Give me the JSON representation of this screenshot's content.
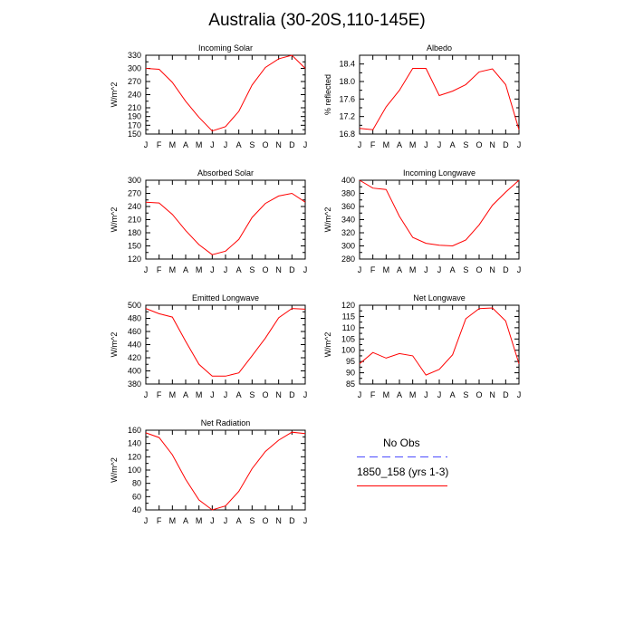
{
  "title": "Australia (30-20S,110-145E)",
  "months": [
    "J",
    "F",
    "M",
    "A",
    "M",
    "J",
    "J",
    "A",
    "S",
    "O",
    "N",
    "D",
    "J"
  ],
  "colors": {
    "model": "#ff0000",
    "obs": "#4a4aff",
    "axis": "#000000"
  },
  "legend": {
    "obs_label": "No Obs",
    "model_label": "1850_158 (yrs 1-3)"
  },
  "chart_data": [
    {
      "type": "line",
      "title": "Incoming Solar",
      "ylabel": "W/m^2",
      "ylim": [
        150,
        330
      ],
      "yticks": [
        150,
        170,
        190,
        210,
        240,
        270,
        300,
        330
      ],
      "series": [
        {
          "name": "1850_158 (yrs 1-3)",
          "values": [
            300,
            298,
            268,
            225,
            188,
            157,
            167,
            202,
            262,
            302,
            322,
            330,
            300
          ]
        }
      ]
    },
    {
      "type": "line",
      "title": "Albedo",
      "ylabel": "% reflected",
      "ylim": [
        16.8,
        18.6
      ],
      "yticks": [
        16.8,
        17.2,
        17.6,
        18.0,
        18.4
      ],
      "series": [
        {
          "name": "1850_158 (yrs 1-3)",
          "values": [
            16.93,
            16.9,
            17.42,
            17.8,
            18.3,
            18.3,
            17.68,
            17.78,
            17.93,
            18.22,
            18.29,
            17.93,
            16.9
          ]
        }
      ]
    },
    {
      "type": "line",
      "title": "Absorbed Solar",
      "ylabel": "W/m^2",
      "ylim": [
        120,
        300
      ],
      "yticks": [
        120,
        150,
        180,
        210,
        240,
        270,
        300
      ],
      "series": [
        {
          "name": "1850_158 (yrs 1-3)",
          "values": [
            250,
            248,
            222,
            185,
            153,
            130,
            138,
            165,
            215,
            247,
            264,
            270,
            250
          ]
        }
      ]
    },
    {
      "type": "line",
      "title": "Incoming Longwave",
      "ylabel": "W/m^2",
      "ylim": [
        280,
        400
      ],
      "yticks": [
        280,
        300,
        320,
        340,
        360,
        380,
        400
      ],
      "series": [
        {
          "name": "1850_158 (yrs 1-3)",
          "values": [
            400,
            388,
            386,
            345,
            313,
            304,
            301,
            300,
            309,
            332,
            362,
            382,
            400
          ]
        }
      ]
    },
    {
      "type": "line",
      "title": "Emitted Longwave",
      "ylabel": "W/m^2",
      "ylim": [
        380,
        500
      ],
      "yticks": [
        380,
        400,
        420,
        440,
        460,
        480,
        500
      ],
      "series": [
        {
          "name": "1850_158 (yrs 1-3)",
          "values": [
            495,
            487,
            482,
            445,
            410,
            392,
            392,
            397,
            423,
            450,
            481,
            495,
            494
          ]
        }
      ]
    },
    {
      "type": "line",
      "title": "Net Longwave",
      "ylabel": "W/m^2",
      "ylim": [
        85,
        120
      ],
      "yticks": [
        85,
        90,
        95,
        100,
        105,
        110,
        115,
        120
      ],
      "series": [
        {
          "name": "1850_158 (yrs 1-3)",
          "values": [
            94,
            99,
            96.5,
            98.5,
            97.5,
            89,
            91.5,
            98,
            114,
            118.5,
            118.8,
            113,
            94
          ]
        }
      ]
    },
    {
      "type": "line",
      "title": "Net Radiation",
      "ylabel": "W/m^2",
      "ylim": [
        40,
        160
      ],
      "yticks": [
        40,
        60,
        80,
        100,
        120,
        140,
        160
      ],
      "series": [
        {
          "name": "1850_158 (yrs 1-3)",
          "values": [
            156,
            149,
            123,
            86,
            55,
            40,
            46,
            68,
            102,
            128,
            145,
            157,
            155
          ]
        }
      ]
    }
  ]
}
